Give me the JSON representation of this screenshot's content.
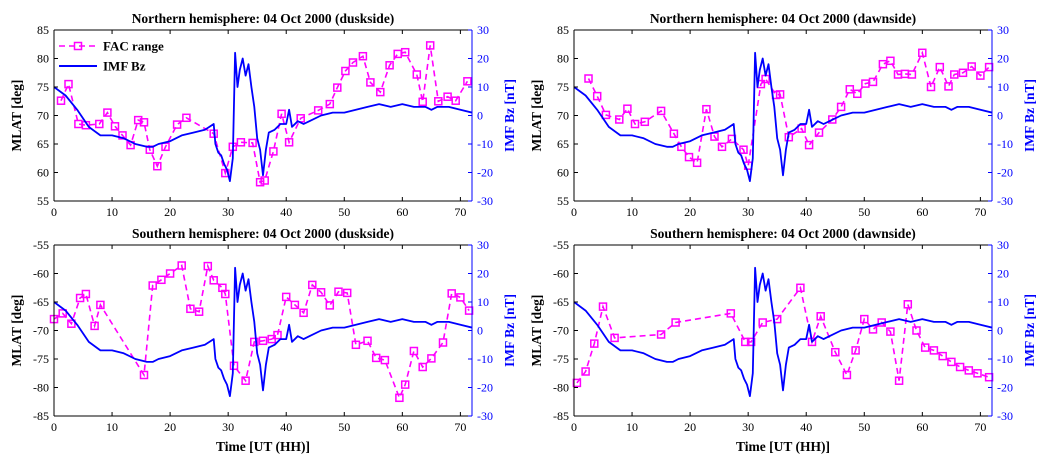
{
  "colors": {
    "fac": "#ff00ff",
    "imf": "#0000ff",
    "axis": "#000000"
  },
  "legend": {
    "fac_label": "FAC range",
    "imf_label": "IMF Bz"
  },
  "chart_data": [
    {
      "type": "line",
      "title": "Northern hemisphere: 04 Oct 2000 (duskside)",
      "xlabel": "",
      "ylabel_left": "MLAT [deg]",
      "ylabel_right": "IMF Bz [nT]",
      "xlim": [
        0,
        72
      ],
      "ylim_left": [
        55,
        85
      ],
      "yticks_left": [
        55,
        60,
        65,
        70,
        75,
        80,
        85
      ],
      "ytick_labels_left": [
        "55",
        "60",
        "65",
        "70",
        "75",
        "80",
        "85"
      ],
      "ylim_right": [
        -30,
        30
      ],
      "yticks_right": [
        -30,
        -20,
        -10,
        0,
        10,
        20,
        30
      ],
      "xticks": [
        0,
        10,
        20,
        30,
        40,
        50,
        60,
        70
      ],
      "legend_position": "top-left",
      "series": [
        {
          "name": "FAC range",
          "axis": "left",
          "x": [
            1.2,
            2.5,
            4.2,
            5.5,
            7.8,
            9.2,
            10.5,
            11.8,
            13.2,
            14.5,
            15.5,
            16.5,
            17.8,
            19.2,
            21.2,
            22.8,
            27.5,
            29.5,
            30.8,
            32.2,
            34.2,
            35.5,
            36.3,
            37.8,
            39.2,
            40.5,
            42.5,
            45.5,
            47.5,
            48.8,
            50.2,
            51.5,
            53.2,
            54.5,
            56.2,
            57.8,
            59.2,
            60.5,
            62.5,
            63.5,
            64.8,
            66.2,
            67.8,
            69.2,
            71.2
          ],
          "y": [
            72.6,
            75.5,
            68.5,
            68.3,
            68.5,
            70.5,
            68.1,
            66.5,
            64.8,
            69.2,
            68.8,
            64.0,
            61.1,
            64.5,
            68.4,
            69.6,
            66.8,
            59.9,
            64.5,
            65.3,
            65.2,
            58.3,
            58.6,
            63.7,
            70.3,
            65.3,
            69.5,
            70.9,
            72.0,
            74.9,
            77.8,
            79.3,
            80.4,
            75.8,
            74.1,
            78.8,
            80.8,
            81.1,
            77.2,
            72.4,
            82.3,
            72.5,
            73.3,
            72.6,
            76.0
          ]
        },
        {
          "name": "IMF Bz",
          "axis": "right",
          "x": [
            0,
            2,
            4,
            6,
            8,
            10,
            12,
            14,
            16,
            17,
            18,
            20,
            22,
            24,
            26,
            27.5,
            27.8,
            28.3,
            28.8,
            29.3,
            29.8,
            30.3,
            30.8,
            31.2,
            31.6,
            32,
            32.5,
            33,
            33.5,
            34,
            34.5,
            35,
            35.5,
            36,
            36.5,
            37,
            38,
            39,
            40,
            40.5,
            41,
            42,
            43,
            44,
            46,
            48,
            50,
            52,
            54,
            56,
            58,
            60,
            62,
            64,
            65,
            66,
            68,
            70,
            72
          ],
          "y": [
            10,
            7,
            2,
            -4,
            -7,
            -7,
            -8,
            -10,
            -11,
            -11,
            -10,
            -9,
            -7,
            -6,
            -5,
            -3,
            -10,
            -13,
            -14,
            -17,
            -19,
            -23,
            -15,
            22,
            10,
            16,
            20,
            14,
            18,
            10,
            3,
            -8,
            -12,
            -21,
            -12,
            -6,
            -5,
            -3,
            -3,
            2,
            -4,
            -2,
            -3,
            -2,
            0,
            1,
            1,
            2,
            3,
            4,
            3,
            4,
            3,
            3,
            2,
            3,
            3,
            2,
            1
          ]
        }
      ]
    },
    {
      "type": "line",
      "title": "Northern hemisphere: 04 Oct 2000 (dawnside)",
      "xlabel": "",
      "ylabel_left": "MLAT [deg]",
      "ylabel_right": "IMF Bz [nT]",
      "xlim": [
        0,
        72
      ],
      "ylim_left": [
        55,
        85
      ],
      "yticks_left": [
        55,
        60,
        65,
        70,
        75,
        80,
        85
      ],
      "ytick_labels_left": [
        "55",
        "60",
        "65",
        "70",
        "75",
        "80",
        "85"
      ],
      "ylim_right": [
        -30,
        30
      ],
      "yticks_right": [
        -30,
        -20,
        -10,
        0,
        10,
        20,
        30
      ],
      "xticks": [
        0,
        10,
        20,
        30,
        40,
        50,
        60,
        70
      ],
      "legend_position": "",
      "series": [
        {
          "name": "",
          "axis": "left",
          "x": [
            2.5,
            4,
            5.5,
            7.8,
            9.2,
            10.5,
            12.2,
            15,
            17.2,
            18.5,
            19.8,
            21.2,
            22.8,
            24.2,
            25.5,
            27.2,
            29.2,
            30,
            32.2,
            33,
            34.8,
            35.5,
            37,
            39.2,
            40.5,
            42.2,
            44.5,
            46,
            47.5,
            48.8,
            50.2,
            51.5,
            53.2,
            54.5,
            55.8,
            57,
            58.2,
            60,
            61.5,
            63,
            64.5,
            65.5,
            67,
            68.5,
            70,
            71.5
          ],
          "y": [
            76.5,
            73.4,
            70.1,
            69.3,
            71.2,
            68.5,
            68.9,
            70.8,
            66.8,
            64.5,
            62.7,
            61.7,
            71.1,
            66.3,
            64.5,
            65.9,
            64.0,
            61.2,
            75.5,
            76.4,
            73.6,
            73.7,
            66.2,
            67.7,
            64.8,
            67.0,
            69.3,
            71.5,
            74.6,
            73.8,
            75.6,
            75.9,
            79.0,
            79.6,
            77.2,
            77.3,
            77.2,
            81.0,
            75.0,
            78.5,
            75.1,
            77.2,
            77.5,
            78.6,
            77.0,
            78.5
          ]
        },
        {
          "name": "",
          "axis": "right",
          "x": [
            0,
            2,
            4,
            6,
            8,
            10,
            12,
            14,
            16,
            17,
            18,
            20,
            22,
            24,
            26,
            27.5,
            27.8,
            28.3,
            28.8,
            29.3,
            29.8,
            30.3,
            30.8,
            31.2,
            31.6,
            32,
            32.5,
            33,
            33.5,
            34,
            34.5,
            35,
            35.5,
            36,
            36.5,
            37,
            38,
            39,
            40,
            40.5,
            41,
            42,
            43,
            44,
            46,
            48,
            50,
            52,
            54,
            56,
            58,
            60,
            62,
            64,
            65,
            66,
            68,
            70,
            72
          ],
          "y": [
            10,
            7,
            2,
            -4,
            -7,
            -7,
            -8,
            -10,
            -11,
            -11,
            -10,
            -9,
            -7,
            -6,
            -5,
            -3,
            -10,
            -13,
            -14,
            -17,
            -19,
            -23,
            -15,
            22,
            10,
            16,
            20,
            14,
            18,
            10,
            3,
            -8,
            -12,
            -21,
            -12,
            -6,
            -5,
            -3,
            -3,
            2,
            -4,
            -2,
            -3,
            -2,
            0,
            1,
            1,
            2,
            3,
            4,
            3,
            4,
            3,
            3,
            2,
            3,
            3,
            2,
            1
          ]
        }
      ]
    },
    {
      "type": "line",
      "title": "Southern hemisphere: 04 Oct 2000 (duskside)",
      "xlabel": "Time [UT (HH)]",
      "ylabel_left": "MLAT [deg]",
      "ylabel_right": "IMF Bz [nT]",
      "xlim": [
        0,
        72
      ],
      "ylim_left": [
        -85,
        -55
      ],
      "yticks_left": [
        -85,
        -80,
        -75,
        -70,
        -65,
        -60,
        -55
      ],
      "ytick_labels_left": [
        "-85",
        "-80",
        "-75",
        "-70",
        "-65",
        "-60",
        "-55"
      ],
      "ylim_right": [
        -30,
        30
      ],
      "yticks_right": [
        -30,
        -20,
        -10,
        0,
        10,
        20,
        30
      ],
      "xticks": [
        0,
        10,
        20,
        30,
        40,
        50,
        60,
        70
      ],
      "legend_position": "",
      "series": [
        {
          "name": "",
          "axis": "left",
          "x": [
            0,
            1.5,
            3,
            4.5,
            5.5,
            7,
            8,
            15.5,
            17,
            18.5,
            20,
            22,
            23.5,
            25,
            26.5,
            27.5,
            29,
            29.5,
            31,
            33,
            34.5,
            36,
            37.5,
            38.5,
            40,
            41.5,
            43,
            44.5,
            46,
            47.5,
            49,
            50.5,
            52,
            54,
            55.5,
            57,
            59.5,
            60.5,
            62,
            63.5,
            65,
            67,
            68.5,
            70,
            71.5
          ],
          "y": [
            -68.0,
            -67.0,
            -68.8,
            -64.3,
            -63.6,
            -69.2,
            -65.5,
            -77.8,
            -62.1,
            -61.1,
            -60.0,
            -58.6,
            -66.2,
            -66.7,
            -58.7,
            -61.2,
            -62.5,
            -63.6,
            -76.2,
            -78.8,
            -72.0,
            -71.8,
            -71.5,
            -70.8,
            -64.1,
            -65.5,
            -66.9,
            -62.0,
            -63.3,
            -65.6,
            -63.2,
            -63.4,
            -72.5,
            -71.8,
            -74.8,
            -75.2,
            -81.8,
            -79.5,
            -73.6,
            -76.4,
            -74.9,
            -72.1,
            -63.5,
            -64.2,
            -66.5
          ]
        },
        {
          "name": "",
          "axis": "right",
          "x": [
            0,
            2,
            4,
            6,
            8,
            10,
            12,
            14,
            16,
            17,
            18,
            20,
            22,
            24,
            26,
            27.5,
            27.8,
            28.3,
            28.8,
            29.3,
            29.8,
            30.3,
            30.8,
            31.2,
            31.6,
            32,
            32.5,
            33,
            33.5,
            34,
            34.5,
            35,
            35.5,
            36,
            36.5,
            37,
            38,
            39,
            40,
            40.5,
            41,
            42,
            43,
            44,
            46,
            48,
            50,
            52,
            54,
            56,
            58,
            60,
            62,
            64,
            65,
            66,
            68,
            70,
            72
          ],
          "y": [
            10,
            7,
            2,
            -4,
            -7,
            -7,
            -8,
            -10,
            -11,
            -11,
            -10,
            -9,
            -7,
            -6,
            -5,
            -3,
            -10,
            -13,
            -14,
            -17,
            -19,
            -23,
            -15,
            22,
            10,
            16,
            20,
            14,
            18,
            10,
            3,
            -8,
            -12,
            -21,
            -12,
            -6,
            -5,
            -3,
            -3,
            2,
            -4,
            -2,
            -3,
            -2,
            0,
            1,
            1,
            2,
            3,
            4,
            3,
            4,
            3,
            3,
            2,
            3,
            3,
            2,
            1
          ]
        }
      ]
    },
    {
      "type": "line",
      "title": "Southern hemisphere: 04 Oct 2000 (dawnside)",
      "xlabel": "Time [UT (HH)]",
      "ylabel_left": "MLAT [deg]",
      "ylabel_right": "IMF Bz [nT]",
      "xlim": [
        0,
        72
      ],
      "ylim_left": [
        -85,
        -55
      ],
      "yticks_left": [
        -85,
        -80,
        -75,
        -70,
        -65,
        -60,
        -55
      ],
      "ytick_labels_left": [
        "-85",
        "-80",
        "-75",
        "-70",
        "-65",
        "-60",
        "-55"
      ],
      "ylim_right": [
        -30,
        30
      ],
      "yticks_right": [
        -30,
        -20,
        -10,
        0,
        10,
        20,
        30
      ],
      "xticks": [
        0,
        10,
        20,
        30,
        40,
        50,
        60,
        70
      ],
      "legend_position": "",
      "series": [
        {
          "name": "",
          "axis": "left",
          "x": [
            0.5,
            2,
            3.5,
            5,
            7,
            15,
            17.5,
            27,
            29.5,
            30.5,
            32.5,
            35,
            39,
            41,
            42.5,
            45,
            47,
            48.5,
            50,
            51.5,
            53,
            54.5,
            56,
            57.5,
            59,
            60.5,
            62,
            63.5,
            65,
            66.5,
            68,
            69.5,
            71.5
          ],
          "y": [
            -79.2,
            -77.2,
            -72.3,
            -65.8,
            -71.3,
            -70.7,
            -68.6,
            -67.0,
            -72.0,
            -72.0,
            -68.6,
            -68.0,
            -62.5,
            -72.0,
            -67.5,
            -73.8,
            -77.8,
            -73.5,
            -68.0,
            -69.8,
            -68.6,
            -70.2,
            -78.8,
            -65.4,
            -70.0,
            -73.0,
            -73.5,
            -74.5,
            -75.5,
            -76.4,
            -77.0,
            -77.5,
            -78.2
          ]
        },
        {
          "name": "",
          "axis": "right",
          "x": [
            0,
            2,
            4,
            6,
            8,
            10,
            12,
            14,
            16,
            17,
            18,
            20,
            22,
            24,
            26,
            27.5,
            27.8,
            28.3,
            28.8,
            29.3,
            29.8,
            30.3,
            30.8,
            31.2,
            31.6,
            32,
            32.5,
            33,
            33.5,
            34,
            34.5,
            35,
            35.5,
            36,
            36.5,
            37,
            38,
            39,
            40,
            40.5,
            41,
            42,
            43,
            44,
            46,
            48,
            50,
            52,
            54,
            56,
            58,
            60,
            62,
            64,
            65,
            66,
            68,
            70,
            72
          ],
          "y": [
            10,
            7,
            2,
            -4,
            -7,
            -7,
            -8,
            -10,
            -11,
            -11,
            -10,
            -9,
            -7,
            -6,
            -5,
            -3,
            -10,
            -13,
            -14,
            -17,
            -19,
            -23,
            -15,
            22,
            10,
            16,
            20,
            14,
            18,
            10,
            3,
            -8,
            -12,
            -21,
            -12,
            -6,
            -5,
            -3,
            -3,
            2,
            -4,
            -2,
            -3,
            -2,
            0,
            1,
            1,
            2,
            3,
            4,
            3,
            4,
            3,
            3,
            2,
            3,
            3,
            2,
            1
          ]
        }
      ]
    }
  ]
}
